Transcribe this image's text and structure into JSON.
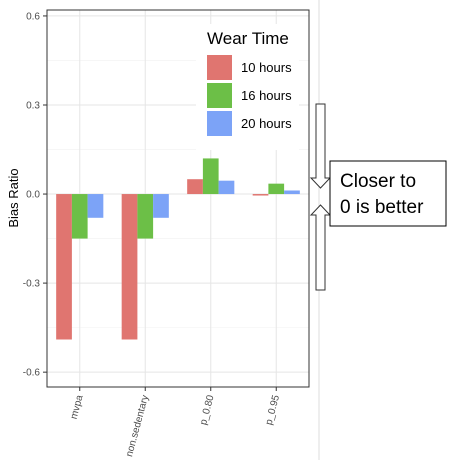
{
  "chart_data": {
    "type": "bar",
    "categories": [
      "mvpa",
      "non.sedentary",
      "p_0.80",
      "p_0.95"
    ],
    "series": [
      {
        "name": "10 hours",
        "values": [
          -0.49,
          -0.49,
          0.05,
          -0.005
        ]
      },
      {
        "name": "16 hours",
        "values": [
          -0.15,
          -0.15,
          0.12,
          0.035
        ]
      },
      {
        "name": "20 hours",
        "values": [
          -0.08,
          -0.08,
          0.045,
          0.012
        ]
      }
    ],
    "colors": [
      "#E07570",
      "#6CBF47",
      "#7CA3F7"
    ],
    "ylabel": "Bias Ratio",
    "xlabel": "",
    "ylim": [
      -0.65,
      0.62
    ],
    "yticks": [
      0.6,
      0.3,
      0.0,
      -0.3,
      -0.6
    ],
    "ytick_labels": [
      "0.6",
      "0.3",
      "0.0",
      "-0.3",
      "-0.6"
    ],
    "grid": true,
    "legend": {
      "title": "Wear Time",
      "position": "top-right"
    },
    "annotation": {
      "lines": [
        "Closer to",
        "0 is better"
      ]
    }
  }
}
